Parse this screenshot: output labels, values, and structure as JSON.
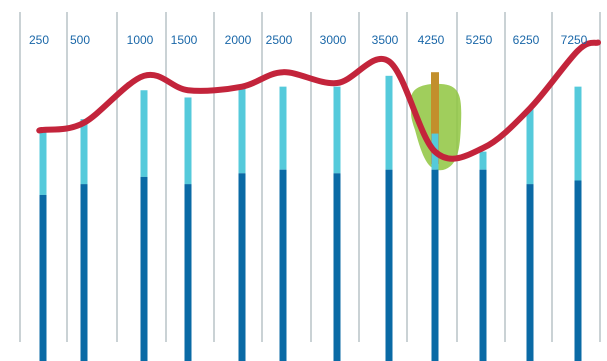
{
  "colors": {
    "background": "#ffffff",
    "divider": "#b9c3c7",
    "bar_dark": "#0a6aa5",
    "bar_light": "#55cadb",
    "line": "#c3243b",
    "tick_text": "#1a67a8",
    "highlight_fill": "#8fc63f",
    "highlight_bar": "#c28f2c"
  },
  "chart_data": {
    "type": "bar",
    "title": "",
    "xlabel": "",
    "ylabel": "",
    "categories": [
      "250",
      "500",
      "1000",
      "1500",
      "2000",
      "2500",
      "3000",
      "3500",
      "4250",
      "5250",
      "6250",
      "7250"
    ],
    "ylim": [
      0,
      100
    ],
    "grid": true,
    "series": [
      {
        "type": "bar",
        "values": [
          46,
          49,
          51,
          49,
          52,
          53,
          52,
          53,
          53,
          53,
          49,
          50
        ]
      },
      {
        "type": "bar-stacked",
        "values": [
          18,
          18,
          24,
          24,
          24,
          23,
          24,
          26,
          10,
          5,
          21,
          26
        ]
      },
      {
        "type": "line",
        "values": [
          64,
          66,
          79,
          75,
          76,
          80,
          77,
          83,
          58,
          59,
          70,
          86
        ]
      }
    ],
    "highlight": {
      "category": "4250",
      "value": 80
    }
  }
}
